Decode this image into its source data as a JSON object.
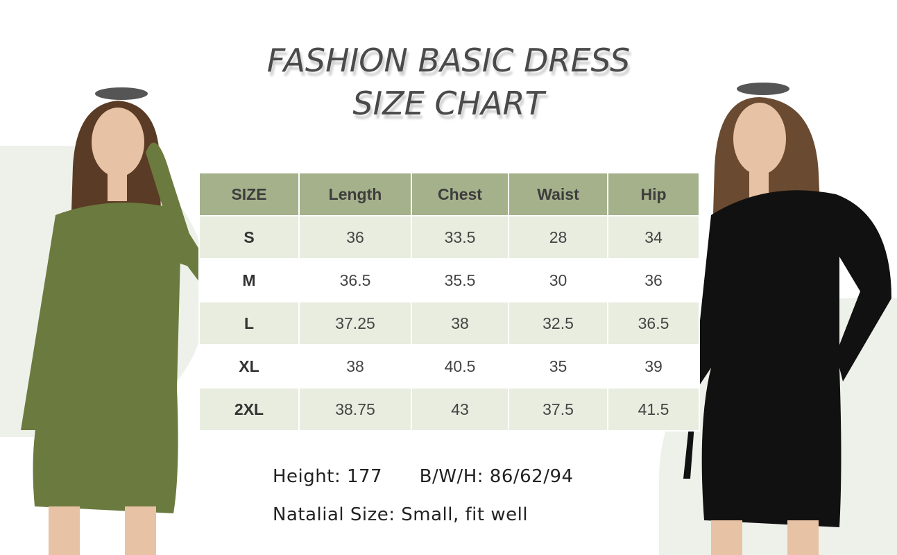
{
  "title": {
    "line1": "FASHION BASIC DRESS",
    "line2": "SIZE CHART"
  },
  "table": {
    "headers": [
      "SIZE",
      "Length",
      "Chest",
      "Waist",
      "Hip"
    ],
    "rows": [
      [
        "S",
        "36",
        "33.5",
        "28",
        "34"
      ],
      [
        "M",
        "36.5",
        "35.5",
        "30",
        "36"
      ],
      [
        "L",
        "37.25",
        "38",
        "32.5",
        "36.5"
      ],
      [
        "XL",
        "38",
        "40.5",
        "35",
        "39"
      ],
      [
        "2XL",
        "38.75",
        "43",
        "37.5",
        "41.5"
      ]
    ]
  },
  "model_info": {
    "height": "Height: 177",
    "bwh": "B/W/H: 86/62/94",
    "size": "Natalial Size: Small, fit well"
  },
  "colors": {
    "header": "#a4b18b",
    "row_alt": "#e8eddf",
    "green_dress": "#6b7a3e",
    "black_dress": "#111111"
  }
}
